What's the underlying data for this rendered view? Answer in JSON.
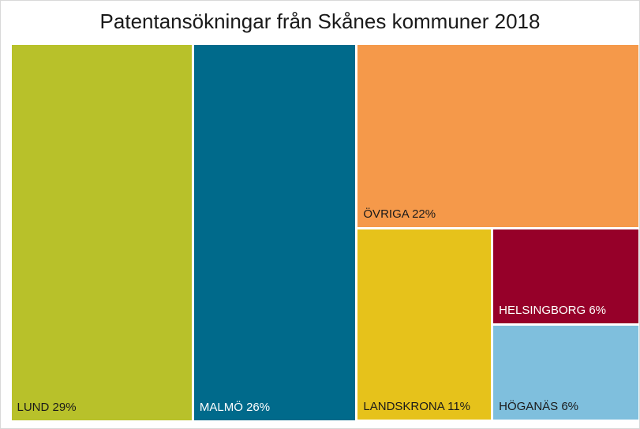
{
  "chart_data": {
    "type": "treemap",
    "title": "Patentansökningar från Skånes kommuner 2018",
    "items": [
      {
        "name": "LUND",
        "value": 29,
        "label": "LUND 29%",
        "color": "#b8c12a",
        "text_color": "#1a1a1a"
      },
      {
        "name": "MALMÖ",
        "value": 26,
        "label": "MALMÖ 26%",
        "color": "#006a8b",
        "text_color": "#ffffff"
      },
      {
        "name": "ÖVRIGA",
        "value": 22,
        "label": "ÖVRIGA 22%",
        "color": "#f5994a",
        "text_color": "#1a1a1a"
      },
      {
        "name": "LANDSKRONA",
        "value": 11,
        "label": "LANDSKRONA 11%",
        "color": "#e6c21b",
        "text_color": "#1a1a1a"
      },
      {
        "name": "HELSINGBORG",
        "value": 6,
        "label": "HELSINGBORG 6%",
        "color": "#960029",
        "text_color": "#ffffff"
      },
      {
        "name": "HÖGANÄS",
        "value": 6,
        "label": "HÖGANÄS 6%",
        "color": "#7fbfdd",
        "text_color": "#1a1a1a"
      }
    ]
  }
}
